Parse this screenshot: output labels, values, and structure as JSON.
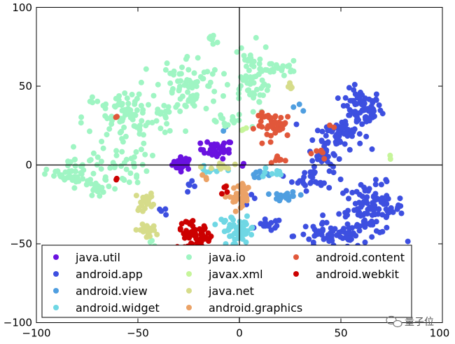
{
  "chart_data": {
    "type": "scatter",
    "title": "",
    "xlabel": "",
    "ylabel": "",
    "xlim": [
      -100,
      100
    ],
    "ylim": [
      -100,
      100
    ],
    "x_ticks": [
      "−100",
      "−50",
      "0",
      "50",
      "100"
    ],
    "y_ticks": [
      "−100",
      "−50",
      "0",
      "50",
      "100"
    ],
    "x_tick_values": [
      -100,
      -50,
      0,
      50,
      100
    ],
    "y_tick_values": [
      -100,
      -50,
      0,
      50,
      100
    ],
    "axis_lines_at_zero": true,
    "grid": false,
    "legend_position": "lower-center",
    "legend_columns": 3,
    "series": [
      {
        "name": "java.util",
        "color": "#6a12e0",
        "clusters": [
          {
            "cx": -28,
            "cy": 1,
            "sx": 2.5,
            "sy": 2,
            "n": 35
          },
          {
            "cx": -11,
            "cy": 10,
            "sx": 4,
            "sy": 3,
            "n": 30
          },
          {
            "cx": 2,
            "cy": 0,
            "sx": 0.5,
            "sy": 0.5,
            "n": 2
          }
        ]
      },
      {
        "name": "android.app",
        "color": "#3d4fe0",
        "clusters": [
          {
            "cx": 60,
            "cy": 36,
            "sx": 5,
            "sy": 6,
            "n": 70
          },
          {
            "cx": 49,
            "cy": 20,
            "sx": 6,
            "sy": 5,
            "n": 60
          },
          {
            "cx": 42,
            "cy": 5,
            "sx": 4,
            "sy": 3,
            "n": 20
          },
          {
            "cx": 36,
            "cy": -8,
            "sx": 5,
            "sy": 4,
            "n": 30
          },
          {
            "cx": 65,
            "cy": -28,
            "sx": 8,
            "sy": 8,
            "n": 110
          },
          {
            "cx": 45,
            "cy": -45,
            "sx": 9,
            "sy": 4,
            "n": 60
          },
          {
            "cx": 15,
            "cy": -38,
            "sx": 3,
            "sy": 2,
            "n": 15
          },
          {
            "cx": -24,
            "cy": -15,
            "sx": 2,
            "sy": 2,
            "n": 5
          },
          {
            "cx": -38,
            "cy": -30,
            "sx": 2,
            "sy": 1.5,
            "n": 4
          },
          {
            "cx": 8,
            "cy": -20,
            "sx": 2,
            "sy": 2,
            "n": 4
          }
        ]
      },
      {
        "name": "android.view",
        "color": "#4f9ee0",
        "clusters": [
          {
            "cx": 23,
            "cy": -20,
            "sx": 3,
            "sy": 1.5,
            "n": 25
          },
          {
            "cx": 10,
            "cy": -5,
            "sx": 3,
            "sy": 2,
            "n": 10
          },
          {
            "cx": 30,
            "cy": 37,
            "sx": 1.5,
            "sy": 1.5,
            "n": 3
          },
          {
            "cx": -8,
            "cy": 23,
            "sx": 1,
            "sy": 1,
            "n": 2
          }
        ]
      },
      {
        "name": "android.widget",
        "color": "#6fd7e4",
        "clusters": [
          {
            "cx": 2,
            "cy": -42,
            "sx": 3,
            "sy": 4,
            "n": 30
          },
          {
            "cx": -5,
            "cy": -38,
            "sx": 3,
            "sy": 3,
            "n": 20
          },
          {
            "cx": -15,
            "cy": -5,
            "sx": 3,
            "sy": 2,
            "n": 8
          },
          {
            "cx": 15,
            "cy": -5,
            "sx": 4,
            "sy": 2,
            "n": 8
          }
        ]
      },
      {
        "name": "java.io",
        "color": "#9ff5c3",
        "clusters": [
          {
            "cx": -55,
            "cy": 30,
            "sx": 11,
            "sy": 9,
            "n": 90
          },
          {
            "cx": -25,
            "cy": 50,
            "sx": 8,
            "sy": 10,
            "n": 80
          },
          {
            "cx": 5,
            "cy": 55,
            "sx": 5,
            "sy": 11,
            "n": 60
          },
          {
            "cx": -65,
            "cy": 0,
            "sx": 10,
            "sy": 6,
            "n": 50
          },
          {
            "cx": -85,
            "cy": -7,
            "sx": 5,
            "sy": 3,
            "n": 30
          },
          {
            "cx": -70,
            "cy": -15,
            "sx": 5,
            "sy": 3,
            "n": 20
          },
          {
            "cx": -5,
            "cy": 27,
            "sx": 5,
            "sy": 3,
            "n": 15
          },
          {
            "cx": -13,
            "cy": 80,
            "sx": 2,
            "sy": 2,
            "n": 10
          },
          {
            "cx": 20,
            "cy": 62,
            "sx": 4,
            "sy": 2,
            "n": 20
          },
          {
            "cx": -45,
            "cy": -50,
            "sx": 1.5,
            "sy": 1.5,
            "n": 3
          }
        ]
      },
      {
        "name": "javax.xml",
        "color": "#c6f59a",
        "clusters": [
          {
            "cx": 75,
            "cy": 6,
            "sx": 1,
            "sy": 1,
            "n": 2
          },
          {
            "cx": 3,
            "cy": 22,
            "sx": 1,
            "sy": 1,
            "n": 3
          }
        ]
      },
      {
        "name": "java.net",
        "color": "#d6dc8a",
        "clusters": [
          {
            "cx": -46,
            "cy": -23,
            "sx": 2.5,
            "sy": 3,
            "n": 20
          },
          {
            "cx": -46,
            "cy": -42,
            "sx": 2.5,
            "sy": 2,
            "n": 18
          },
          {
            "cx": 25,
            "cy": 50,
            "sx": 1.5,
            "sy": 2,
            "n": 6
          },
          {
            "cx": -10,
            "cy": -2,
            "sx": 3,
            "sy": 2,
            "n": 10
          }
        ]
      },
      {
        "name": "android.graphics",
        "color": "#eba266",
        "clusters": [
          {
            "cx": 0,
            "cy": -20,
            "sx": 4,
            "sy": 3,
            "n": 25
          },
          {
            "cx": 1,
            "cy": -15,
            "sx": 2,
            "sy": 2,
            "n": 8
          },
          {
            "cx": -18,
            "cy": -8,
            "sx": 1,
            "sy": 1,
            "n": 3
          }
        ]
      },
      {
        "name": "android.content",
        "color": "#e1573a",
        "clusters": [
          {
            "cx": 18,
            "cy": 25,
            "sx": 5,
            "sy": 4,
            "n": 45
          },
          {
            "cx": 20,
            "cy": 4,
            "sx": 1.5,
            "sy": 1.5,
            "n": 8
          },
          {
            "cx": 41,
            "cy": 7,
            "sx": 1.5,
            "sy": 1.5,
            "n": 6
          },
          {
            "cx": -60,
            "cy": 31,
            "sx": 1,
            "sy": 1,
            "n": 2
          },
          {
            "cx": 44,
            "cy": 25,
            "sx": 1,
            "sy": 1,
            "n": 2
          }
        ]
      },
      {
        "name": "android.webkit",
        "color": "#cc0000",
        "clusters": [
          {
            "cx": -22,
            "cy": -45,
            "sx": 4,
            "sy": 4,
            "n": 55
          },
          {
            "cx": -7,
            "cy": -15,
            "sx": 1.5,
            "sy": 1.5,
            "n": 5
          },
          {
            "cx": -26,
            "cy": -37,
            "sx": 1,
            "sy": 1,
            "n": 3
          },
          {
            "cx": -60,
            "cy": -9,
            "sx": 1,
            "sy": 1,
            "n": 2
          }
        ]
      }
    ]
  },
  "watermark": {
    "text": "量子位"
  }
}
